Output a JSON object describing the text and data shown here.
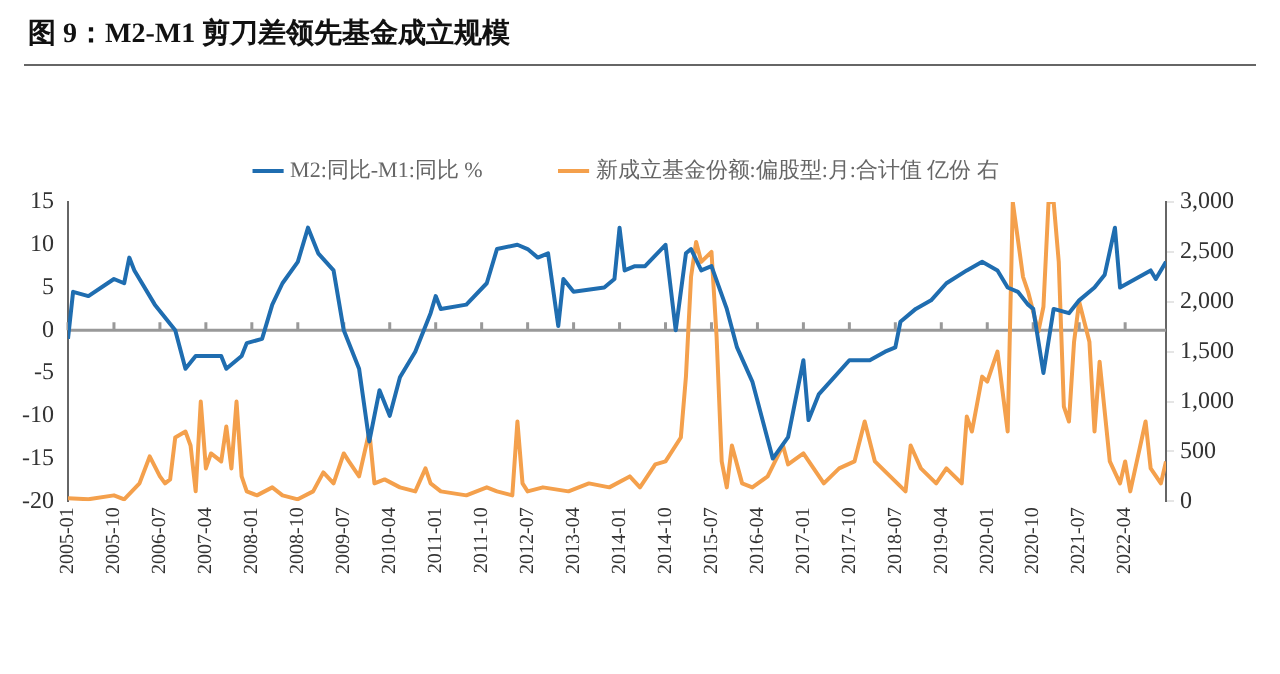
{
  "chart_data": {
    "type": "line",
    "title": "图 9：M2-M1 剪刀差领先基金成立规模",
    "xlim": [
      "2005-01",
      "2022-12"
    ],
    "xticks": [
      "2005-01",
      "2005-10",
      "2006-07",
      "2007-04",
      "2008-01",
      "2008-10",
      "2009-07",
      "2010-04",
      "2011-01",
      "2011-10",
      "2012-07",
      "2013-04",
      "2014-01",
      "2014-10",
      "2015-07",
      "2016-04",
      "2017-01",
      "2017-10",
      "2018-07",
      "2019-04",
      "2020-01",
      "2020-10",
      "2021-07",
      "2022-04"
    ],
    "ylim": [
      -20,
      15
    ],
    "yticks": [
      -20,
      -15,
      -10,
      -5,
      0,
      5,
      10,
      15
    ],
    "y2lim": [
      0,
      3000
    ],
    "y2ticks": [
      0,
      {
        "value": 500,
        "label": "500"
      },
      {
        "value": 1000,
        "label": "1,000"
      },
      {
        "value": 1500,
        "label": "1,500"
      },
      {
        "value": 2000,
        "label": "2,000"
      },
      {
        "value": 2500,
        "label": "2,500"
      },
      {
        "value": 3000,
        "label": "3,000"
      }
    ],
    "grid": false,
    "legend": "top",
    "marker": "none",
    "ref_lines": [
      {
        "axis": "y",
        "value": 0,
        "color": "#999999"
      }
    ],
    "series": [
      {
        "name": "M2:同比-M1:同比 %",
        "color": "#1f6db0",
        "x": [
          "2005-01",
          "2005-02",
          "2005-05",
          "2005-10",
          "2005-12",
          "2006-01",
          "2006-02",
          "2006-06",
          "2006-10",
          "2006-12",
          "2007-02",
          "2007-07",
          "2007-08",
          "2007-11",
          "2007-12",
          "2008-03",
          "2008-05",
          "2008-07",
          "2008-10",
          "2008-12",
          "2009-02",
          "2009-05",
          "2009-07",
          "2009-10",
          "2009-12",
          "2010-02",
          "2010-04",
          "2010-06",
          "2010-09",
          "2010-12",
          "2011-01",
          "2011-02",
          "2011-07",
          "2011-11",
          "2012-01",
          "2012-05",
          "2012-07",
          "2012-09",
          "2012-11",
          "2013-01",
          "2013-02",
          "2013-04",
          "2013-10",
          "2013-12",
          "2014-01",
          "2014-02",
          "2014-04",
          "2014-06",
          "2014-10",
          "2014-12",
          "2015-02",
          "2015-03",
          "2015-05",
          "2015-07",
          "2015-10",
          "2015-12",
          "2016-03",
          "2016-07",
          "2016-10",
          "2017-01",
          "2017-02",
          "2017-04",
          "2017-07",
          "2017-10",
          "2018-02",
          "2018-05",
          "2018-07",
          "2018-08",
          "2018-11",
          "2019-02",
          "2019-05",
          "2019-09",
          "2019-12",
          "2020-03",
          "2020-05",
          "2020-07",
          "2020-09",
          "2020-10",
          "2020-12",
          "2021-02",
          "2021-05",
          "2021-07",
          "2021-10",
          "2021-12",
          "2022-02",
          "2022-03",
          "2022-06",
          "2022-09",
          "2022-10",
          "2022-12"
        ],
        "values": [
          -1,
          4.5,
          4,
          6,
          5.5,
          8.5,
          7,
          3,
          0,
          -4.5,
          -3,
          -3,
          -4.5,
          -3,
          -1.5,
          -1,
          3,
          5.5,
          8,
          12,
          9,
          7,
          0,
          -4.5,
          -13,
          -7,
          -10,
          -5.5,
          -2.5,
          2,
          4,
          2.5,
          3,
          5.5,
          9.5,
          10,
          9.5,
          8.5,
          9,
          0.5,
          6,
          4.5,
          5,
          6,
          12,
          7,
          7.5,
          7.5,
          10,
          0,
          9,
          9.5,
          7,
          7.5,
          2.5,
          -2,
          -6,
          -15,
          -12.5,
          -3.5,
          -10.5,
          -7.5,
          -5.5,
          -3.5,
          -3.5,
          -2.5,
          -2,
          1,
          2.5,
          3.5,
          5.5,
          7,
          8,
          7,
          5,
          4.5,
          3,
          2.5,
          -5,
          2.5,
          2,
          3.5,
          5,
          6.5,
          12,
          5,
          6,
          7,
          6,
          8
        ]
      },
      {
        "name": "新成立基金份额:偏股型:月:合计值 亿份 右",
        "color": "#f4a04c",
        "axis": "y2",
        "x": [
          "2005-01",
          "2005-05",
          "2005-10",
          "2005-12",
          "2006-03",
          "2006-05",
          "2006-07",
          "2006-08",
          "2006-09",
          "2006-10",
          "2006-12",
          "2007-01",
          "2007-02",
          "2007-03",
          "2007-04",
          "2007-05",
          "2007-07",
          "2007-08",
          "2007-09",
          "2007-10",
          "2007-11",
          "2007-12",
          "2008-02",
          "2008-05",
          "2008-07",
          "2008-10",
          "2009-01",
          "2009-03",
          "2009-05",
          "2009-07",
          "2009-08",
          "2009-10",
          "2009-12",
          "2010-01",
          "2010-03",
          "2010-06",
          "2010-09",
          "2010-11",
          "2010-12",
          "2011-02",
          "2011-07",
          "2011-11",
          "2012-01",
          "2012-04",
          "2012-05",
          "2012-06",
          "2012-07",
          "2012-10",
          "2013-03",
          "2013-07",
          "2013-11",
          "2014-03",
          "2014-05",
          "2014-08",
          "2014-10",
          "2015-01",
          "2015-02",
          "2015-03",
          "2015-04",
          "2015-05",
          "2015-07",
          "2015-08",
          "2015-09",
          "2015-10",
          "2015-11",
          "2016-01",
          "2016-03",
          "2016-06",
          "2016-09",
          "2016-10",
          "2017-01",
          "2017-05",
          "2017-08",
          "2017-11",
          "2018-01",
          "2018-03",
          "2018-06",
          "2018-09",
          "2018-10",
          "2018-12",
          "2019-03",
          "2019-05",
          "2019-08",
          "2019-09",
          "2019-10",
          "2019-12",
          "2020-01",
          "2020-03",
          "2020-05",
          "2020-06",
          "2020-08",
          "2020-09",
          "2020-11",
          "2020-12",
          "2021-01",
          "2021-02",
          "2021-03",
          "2021-04",
          "2021-05",
          "2021-06",
          "2021-07",
          "2021-09",
          "2021-10",
          "2021-11",
          "2022-01",
          "2022-03",
          "2022-04",
          "2022-05",
          "2022-08",
          "2022-09",
          "2022-11",
          "2022-12"
        ],
        "values": [
          30,
          20,
          60,
          20,
          180,
          450,
          250,
          180,
          220,
          640,
          700,
          560,
          100,
          1000,
          330,
          480,
          400,
          750,
          330,
          1000,
          250,
          100,
          60,
          140,
          60,
          20,
          100,
          290,
          180,
          480,
          400,
          250,
          700,
          180,
          220,
          140,
          100,
          330,
          180,
          100,
          60,
          140,
          100,
          60,
          800,
          180,
          100,
          140,
          100,
          180,
          140,
          250,
          140,
          370,
          400,
          640,
          1250,
          2250,
          2600,
          2400,
          2500,
          1650,
          400,
          140,
          560,
          180,
          140,
          250,
          560,
          370,
          480,
          180,
          330,
          400,
          800,
          400,
          250,
          100,
          560,
          330,
          180,
          330,
          180,
          850,
          700,
          1250,
          1200,
          1500,
          700,
          3000,
          2250,
          2100,
          1700,
          1950,
          3000,
          3000,
          2400,
          950,
          800,
          1600,
          2000,
          1600,
          700,
          1400,
          400,
          180,
          400,
          100,
          800,
          330,
          180,
          400
        ]
      }
    ]
  }
}
